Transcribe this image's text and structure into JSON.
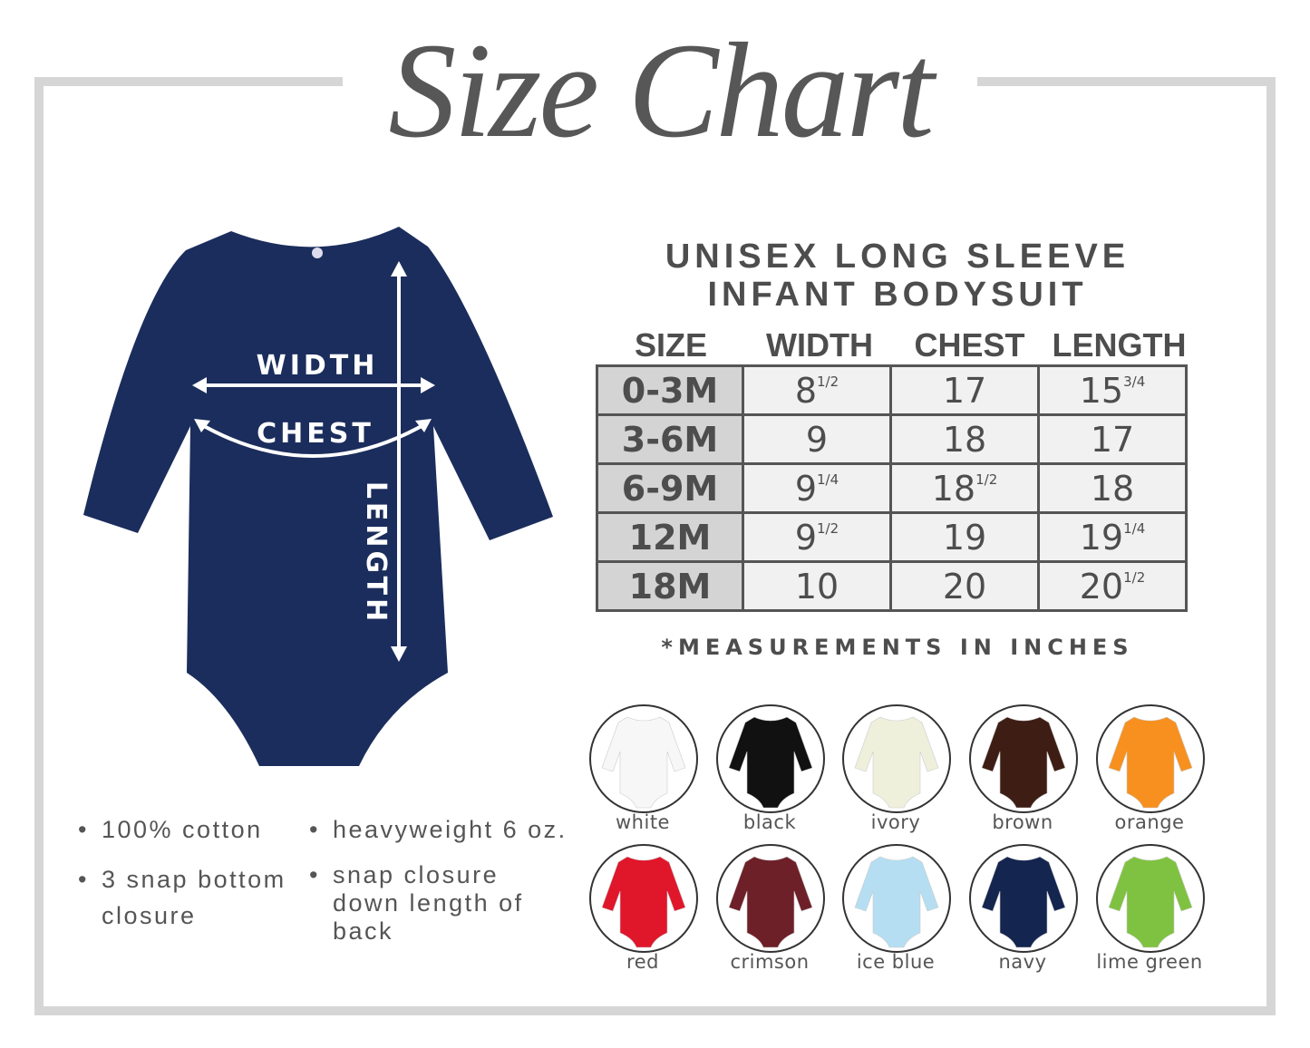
{
  "title": "Size Chart",
  "product_title": [
    "UNISEX LONG SLEEVE",
    "INFANT BODYSUIT"
  ],
  "diagram": {
    "garment_color": "#1b2d5c",
    "labels": {
      "width": "WIDTH",
      "chest": "CHEST",
      "length": "LENGTH"
    }
  },
  "table": {
    "headers": [
      "SIZE",
      "WIDTH",
      "CHEST",
      "LENGTH"
    ],
    "rows": [
      {
        "size": "0-3M",
        "width": "8",
        "width_frac": "1/2",
        "chest": "17",
        "chest_frac": "",
        "length": "15",
        "length_frac": "3/4"
      },
      {
        "size": "3-6M",
        "width": "9",
        "width_frac": "",
        "chest": "18",
        "chest_frac": "",
        "length": "17",
        "length_frac": ""
      },
      {
        "size": "6-9M",
        "width": "9",
        "width_frac": "1/4",
        "chest": "18",
        "chest_frac": "1/2",
        "length": "18",
        "length_frac": ""
      },
      {
        "size": "12M",
        "width": "9",
        "width_frac": "1/2",
        "chest": "19",
        "chest_frac": "",
        "length": "19",
        "length_frac": "1/4"
      },
      {
        "size": "18M",
        "width": "10",
        "width_frac": "",
        "chest": "20",
        "chest_frac": "",
        "length": "20",
        "length_frac": "1/2"
      }
    ],
    "note": "*MEASUREMENTS IN INCHES"
  },
  "features": [
    "100% cotton",
    "heavyweight 6 oz.",
    "3 snap bottom closure",
    "snap closure down length of back"
  ],
  "colors": [
    {
      "name": "white",
      "hex": "#f7f7f7"
    },
    {
      "name": "black",
      "hex": "#111111"
    },
    {
      "name": "ivory",
      "hex": "#eef0dc"
    },
    {
      "name": "brown",
      "hex": "#3e1e14"
    },
    {
      "name": "orange",
      "hex": "#f7901e"
    },
    {
      "name": "red",
      "hex": "#e0162b"
    },
    {
      "name": "crimson",
      "hex": "#6e2028"
    },
    {
      "name": "ice blue",
      "hex": "#b5def2"
    },
    {
      "name": "navy",
      "hex": "#14254f"
    },
    {
      "name": "lime green",
      "hex": "#7fc241"
    }
  ]
}
